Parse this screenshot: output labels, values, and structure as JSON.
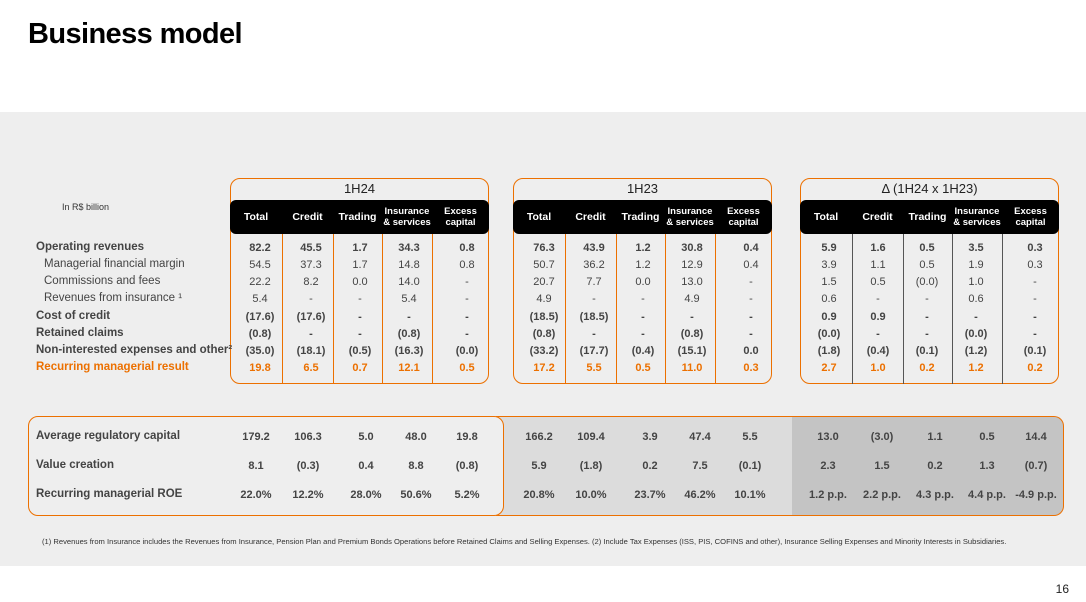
{
  "title": "Business model",
  "unit_label": "In R$ billion",
  "groups": [
    "1H24",
    "1H23",
    "Δ (1H24 x 1H23)"
  ],
  "headers": {
    "total": "Total",
    "credit": "Credit",
    "trading": "Trading",
    "insurance": "Insurance & services",
    "excess": "Excess capital"
  },
  "rows": [
    {
      "label": "Operating revenues",
      "style": "bold",
      "v": [
        "82.2",
        "45.5",
        "1.7",
        "34.3",
        "0.8",
        "76.3",
        "43.9",
        "1.2",
        "30.8",
        "0.4",
        "5.9",
        "1.6",
        "0.5",
        "3.5",
        "0.3"
      ]
    },
    {
      "label": "Managerial financial margin",
      "style": "indent",
      "v": [
        "54.5",
        "37.3",
        "1.7",
        "14.8",
        "0.8",
        "50.7",
        "36.2",
        "1.2",
        "12.9",
        "0.4",
        "3.9",
        "1.1",
        "0.5",
        "1.9",
        "0.3"
      ]
    },
    {
      "label": "Commissions and fees",
      "style": "indent",
      "v": [
        "22.2",
        "8.2",
        "0.0",
        "14.0",
        "-",
        "20.7",
        "7.7",
        "0.0",
        "13.0",
        "-",
        "1.5",
        "0.5",
        "(0.0)",
        "1.0",
        "-"
      ]
    },
    {
      "label": "Revenues from insurance ¹",
      "style": "indent",
      "v": [
        "5.4",
        "-",
        "-",
        "5.4",
        "-",
        "4.9",
        "-",
        "-",
        "4.9",
        "-",
        "0.6",
        "-",
        "-",
        "0.6",
        "-"
      ]
    },
    {
      "label": "Cost of credit",
      "style": "bold",
      "v": [
        "(17.6)",
        "(17.6)",
        "-",
        "-",
        "-",
        "(18.5)",
        "(18.5)",
        "-",
        "-",
        "-",
        "0.9",
        "0.9",
        "-",
        "-",
        "-"
      ]
    },
    {
      "label": "Retained claims",
      "style": "bold",
      "v": [
        "(0.8)",
        "-",
        "-",
        "(0.8)",
        "-",
        "(0.8)",
        "-",
        "-",
        "(0.8)",
        "-",
        "(0.0)",
        "-",
        "-",
        "(0.0)",
        "-"
      ]
    },
    {
      "label": "Non-interested expenses and other²",
      "style": "bold",
      "v": [
        "(35.0)",
        "(18.1)",
        "(0.5)",
        "(16.3)",
        "(0.0)",
        "(33.2)",
        "(17.7)",
        "(0.4)",
        "(15.1)",
        "0.0",
        "(1.8)",
        "(0.4)",
        "(0.1)",
        "(1.2)",
        "(0.1)"
      ]
    },
    {
      "label": "Recurring managerial result",
      "style": "orange",
      "v": [
        "19.8",
        "6.5",
        "0.7",
        "12.1",
        "0.5",
        "17.2",
        "5.5",
        "0.5",
        "11.0",
        "0.3",
        "2.7",
        "1.0",
        "0.2",
        "1.2",
        "0.2"
      ]
    }
  ],
  "lower_rows": [
    {
      "label": "Average regulatory capital",
      "v": [
        "179.2",
        "106.3",
        "5.0",
        "48.0",
        "19.8",
        "166.2",
        "109.4",
        "3.9",
        "47.4",
        "5.5",
        "13.0",
        "(3.0)",
        "1.1",
        "0.5",
        "14.4"
      ]
    },
    {
      "label": "Value creation",
      "v": [
        "8.1",
        "(0.3)",
        "0.4",
        "8.8",
        "(0.8)",
        "5.9",
        "(1.8)",
        "0.2",
        "7.5",
        "(0.1)",
        "2.3",
        "1.5",
        "0.2",
        "1.3",
        "(0.7)"
      ]
    },
    {
      "label": "Recurring managerial ROE",
      "v": [
        "22.0%",
        "12.2%",
        "28.0%",
        "50.6%",
        "5.2%",
        "20.8%",
        "10.0%",
        "23.7%",
        "46.2%",
        "10.1%",
        "1.2 p.p.",
        "2.2 p.p.",
        "4.3 p.p.",
        "4.4 p.p.",
        "-4.9 p.p."
      ]
    }
  ],
  "footnote": "(1) Revenues from Insurance includes the Revenues from Insurance, Pension Plan and Premium Bonds Operations before Retained Claims and Selling Expenses. (2) Include Tax Expenses (ISS, PIS, COFINS and other), Insurance Selling Expenses and Minority Interests in Subsidiaries.",
  "page_number": "16",
  "colors": {
    "accent": "#ec7000",
    "header_bg": "#000000",
    "panel_bg": "#eeeeee"
  }
}
